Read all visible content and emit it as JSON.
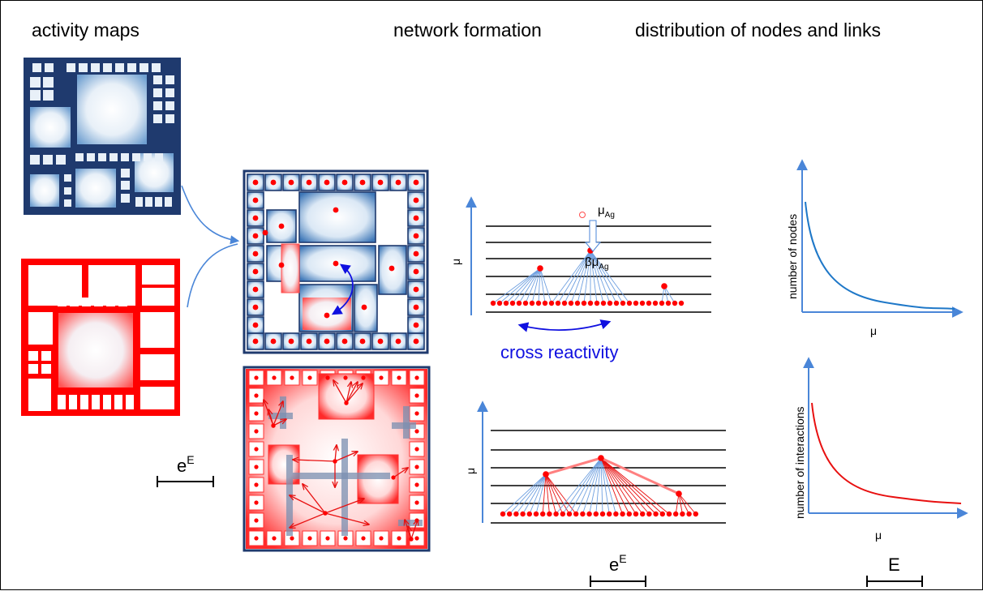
{
  "headings": {
    "activity_maps": "activity maps",
    "network_formation": "network formation",
    "distribution": "distribution of nodes and links"
  },
  "scale_bars": {
    "left": {
      "base": "e",
      "sup": "E"
    },
    "middle": {
      "base": "e",
      "sup": "E"
    },
    "right": "E"
  },
  "network_top": {
    "y_axis": "μ",
    "mu_ag": {
      "base": "μ",
      "sub": "Ag"
    },
    "beta_mu_ag": {
      "base": "βμ",
      "sub": "Ag"
    },
    "cross_reactivity": "cross reactivity"
  },
  "network_bottom": {
    "y_axis": "μ"
  },
  "plot_nodes": {
    "y_label": "number of nodes",
    "x_label": "μ"
  },
  "plot_interactions": {
    "y_label": "number of interactions",
    "x_label": "μ"
  },
  "colors": {
    "navy": "#1f3a6e",
    "red": "#ff0000",
    "axis_blue": "#4a86d8",
    "line_blue": "#6fa0e0",
    "curve_blue": "#1f78c8",
    "curve_red": "#e81010",
    "text_blue": "#1010e0"
  }
}
